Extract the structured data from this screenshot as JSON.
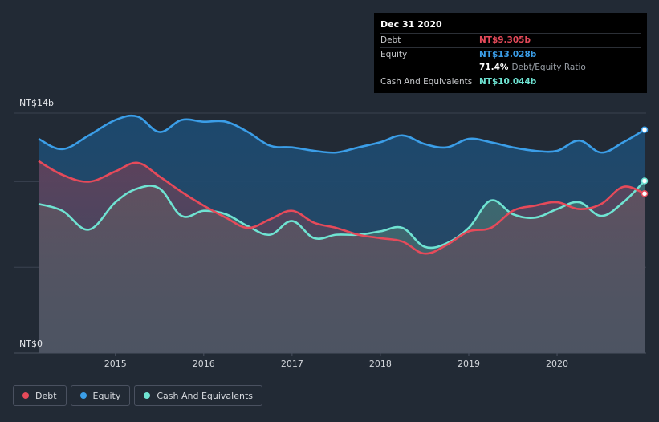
{
  "tooltip": {
    "date": "Dec 31 2020",
    "debt_label": "Debt",
    "debt_value": "NT$9.305b",
    "equity_label": "Equity",
    "equity_value": "NT$13.028b",
    "ratio_value": "71.4%",
    "ratio_label": "Debt/Equity Ratio",
    "cash_label": "Cash And Equivalents",
    "cash_value": "NT$10.044b"
  },
  "colors": {
    "debt": "#e64a5a",
    "equity": "#3b9ee8",
    "cash": "#6fe3d2",
    "background": "#222a35"
  },
  "legend": [
    {
      "label": "Debt",
      "color": "#e64a5a"
    },
    {
      "label": "Equity",
      "color": "#3b9ee8"
    },
    {
      "label": "Cash And Equivalents",
      "color": "#6fe3d2"
    }
  ],
  "chart_data": {
    "type": "area",
    "title": "",
    "xlabel": "",
    "ylabel": "",
    "y_tick_labels": [
      "NT$14b",
      "NT$0"
    ],
    "ylim": [
      0,
      14
    ],
    "xlim": [
      2014.12,
      2020.99
    ],
    "x_ticks": [
      2015,
      2016,
      2017,
      2018,
      2019,
      2020
    ],
    "grid": true,
    "legend_position": "bottom-left",
    "series": [
      {
        "name": "Debt",
        "points": [
          [
            2014.13,
            11.2
          ],
          [
            2014.4,
            10.4
          ],
          [
            2014.7,
            10.0
          ],
          [
            2015.0,
            10.6
          ],
          [
            2015.25,
            11.1
          ],
          [
            2015.5,
            10.3
          ],
          [
            2015.75,
            9.4
          ],
          [
            2016.0,
            8.6
          ],
          [
            2016.25,
            7.9
          ],
          [
            2016.5,
            7.3
          ],
          [
            2016.75,
            7.8
          ],
          [
            2017.0,
            8.3
          ],
          [
            2017.25,
            7.6
          ],
          [
            2017.5,
            7.3
          ],
          [
            2017.75,
            6.9
          ],
          [
            2018.0,
            6.7
          ],
          [
            2018.25,
            6.5
          ],
          [
            2018.5,
            5.8
          ],
          [
            2018.75,
            6.3
          ],
          [
            2019.0,
            7.1
          ],
          [
            2019.25,
            7.3
          ],
          [
            2019.5,
            8.3
          ],
          [
            2019.75,
            8.6
          ],
          [
            2020.0,
            8.8
          ],
          [
            2020.25,
            8.4
          ],
          [
            2020.5,
            8.7
          ],
          [
            2020.75,
            9.7
          ],
          [
            2020.99,
            9.305
          ]
        ]
      },
      {
        "name": "Equity",
        "points": [
          [
            2014.13,
            12.5
          ],
          [
            2014.4,
            11.9
          ],
          [
            2014.7,
            12.7
          ],
          [
            2015.0,
            13.6
          ],
          [
            2015.25,
            13.8
          ],
          [
            2015.5,
            12.9
          ],
          [
            2015.75,
            13.6
          ],
          [
            2016.0,
            13.5
          ],
          [
            2016.25,
            13.5
          ],
          [
            2016.5,
            12.9
          ],
          [
            2016.75,
            12.1
          ],
          [
            2017.0,
            12.0
          ],
          [
            2017.25,
            11.8
          ],
          [
            2017.5,
            11.7
          ],
          [
            2017.75,
            12.0
          ],
          [
            2018.0,
            12.3
          ],
          [
            2018.25,
            12.7
          ],
          [
            2018.5,
            12.2
          ],
          [
            2018.75,
            12.0
          ],
          [
            2019.0,
            12.5
          ],
          [
            2019.25,
            12.3
          ],
          [
            2019.5,
            12.0
          ],
          [
            2019.75,
            11.8
          ],
          [
            2020.0,
            11.8
          ],
          [
            2020.25,
            12.4
          ],
          [
            2020.5,
            11.7
          ],
          [
            2020.75,
            12.3
          ],
          [
            2020.99,
            13.028
          ]
        ]
      },
      {
        "name": "Cash And Equivalents",
        "points": [
          [
            2014.13,
            8.7
          ],
          [
            2014.4,
            8.3
          ],
          [
            2014.7,
            7.2
          ],
          [
            2015.0,
            8.8
          ],
          [
            2015.25,
            9.6
          ],
          [
            2015.5,
            9.6
          ],
          [
            2015.75,
            8.0
          ],
          [
            2016.0,
            8.3
          ],
          [
            2016.25,
            8.1
          ],
          [
            2016.5,
            7.4
          ],
          [
            2016.75,
            6.9
          ],
          [
            2017.0,
            7.7
          ],
          [
            2017.25,
            6.7
          ],
          [
            2017.5,
            6.9
          ],
          [
            2017.75,
            6.9
          ],
          [
            2018.0,
            7.1
          ],
          [
            2018.25,
            7.3
          ],
          [
            2018.5,
            6.2
          ],
          [
            2018.75,
            6.4
          ],
          [
            2019.0,
            7.3
          ],
          [
            2019.25,
            8.9
          ],
          [
            2019.5,
            8.1
          ],
          [
            2019.75,
            7.9
          ],
          [
            2020.0,
            8.4
          ],
          [
            2020.25,
            8.8
          ],
          [
            2020.5,
            8.0
          ],
          [
            2020.75,
            8.8
          ],
          [
            2020.99,
            10.044
          ]
        ]
      }
    ]
  }
}
